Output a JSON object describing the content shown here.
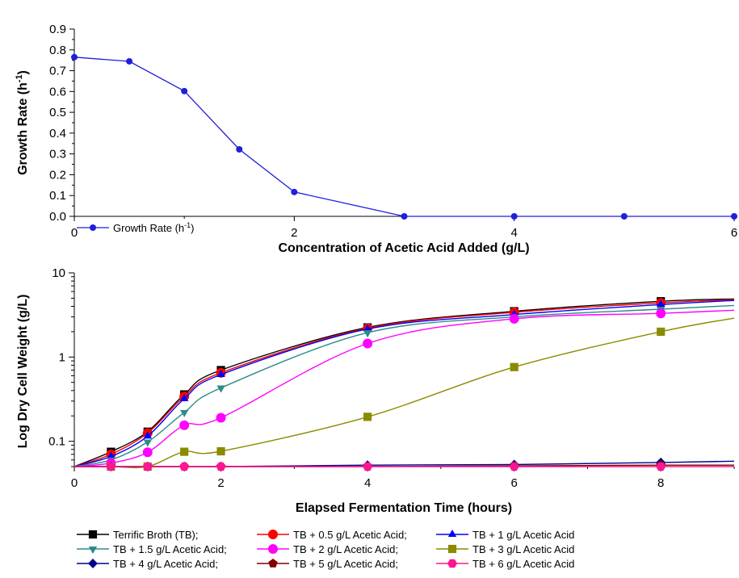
{
  "colors": {
    "growth": "#1f1fdc",
    "tb": "#000000",
    "tb_0_5": "#ff0000",
    "tb_1": "#0000ff",
    "tb_1_5": "#2e8b8b",
    "tb_2": "#ff00ff",
    "tb_3": "#8b8b00",
    "tb_4": "#00008b",
    "tb_5": "#800000",
    "tb_6": "#ff1493"
  },
  "chart_data": [
    {
      "type": "line",
      "xlabel": "Concentration of Acetic Acid Added (g/L)",
      "ylabel": "Growth Rate (h",
      "ylabel_sup": "-1",
      "ylabel_end": ")",
      "xlim": [
        0,
        6
      ],
      "ylim": [
        0,
        0.9
      ],
      "x_ticks": [
        "0",
        "2",
        "4",
        "6"
      ],
      "y_ticks": [
        "0.0",
        "0.1",
        "0.2",
        "0.3",
        "0.4",
        "0.5",
        "0.6",
        "0.7",
        "0.8",
        "0.9"
      ],
      "legend_position": "bottom-left",
      "series": [
        {
          "name": "Growth Rate (h",
          "name_sup": "-1",
          "name_end": ")",
          "marker": "circle",
          "x": [
            0,
            0.5,
            1,
            1.5,
            2,
            3,
            4,
            5,
            6
          ],
          "y": [
            0.765,
            0.745,
            0.602,
            0.322,
            0.117,
            0.0,
            0.0,
            0.0,
            0.0
          ]
        }
      ]
    },
    {
      "type": "line",
      "yscale": "log",
      "xlabel": "Elapsed Fermentation Time (hours)",
      "ylabel": "Log Dry Cell Weight (g/L)",
      "xlim": [
        0,
        9
      ],
      "ylim": [
        0.05,
        10
      ],
      "x_ticks": [
        "0",
        "2",
        "4",
        "6",
        "8"
      ],
      "y_ticks": [
        "0.1",
        "1",
        "10"
      ],
      "legend_position": "bottom",
      "series": [
        {
          "name": "Terrific Broth (TB);",
          "marker": "square",
          "color_key": "tb",
          "x": [
            0,
            0.5,
            1,
            1.5,
            2,
            4,
            6,
            8,
            9
          ],
          "y": [
            0.05,
            0.075,
            0.13,
            0.36,
            0.7,
            2.25,
            3.5,
            4.6,
            4.9
          ]
        },
        {
          "name": "TB + 0.5 g/L Acetic Acid;",
          "marker": "circle",
          "color_key": "tb_0_5",
          "x": [
            0,
            0.5,
            1,
            1.5,
            2,
            4,
            6,
            8,
            9
          ],
          "y": [
            0.05,
            0.07,
            0.125,
            0.34,
            0.65,
            2.2,
            3.4,
            4.4,
            4.8
          ]
        },
        {
          "name": "TB + 1 g/L Acetic Acid",
          "marker": "triangle-up",
          "color_key": "tb_1",
          "x": [
            0,
            0.5,
            1,
            1.5,
            2,
            4,
            6,
            8,
            9
          ],
          "y": [
            0.05,
            0.066,
            0.115,
            0.32,
            0.62,
            2.15,
            3.2,
            4.2,
            4.7
          ]
        },
        {
          "name": "TB + 1.5 g/L Acetic Acid;",
          "marker": "triangle-down",
          "color_key": "tb_1_5",
          "x": [
            0,
            0.5,
            1,
            1.5,
            2,
            4,
            6,
            8,
            9
          ],
          "y": [
            0.05,
            0.06,
            0.098,
            0.22,
            0.43,
            1.95,
            3.0,
            3.7,
            4.1
          ]
        },
        {
          "name": "TB + 2 g/L Acetic Acid;",
          "marker": "circle",
          "color_key": "tb_2",
          "x": [
            0,
            0.5,
            1,
            1.5,
            2,
            4,
            6,
            8,
            9
          ],
          "y": [
            0.05,
            0.055,
            0.074,
            0.155,
            0.19,
            1.45,
            2.85,
            3.3,
            3.6
          ]
        },
        {
          "name": "TB + 3 g/L Acetic Acid",
          "marker": "square",
          "color_key": "tb_3",
          "x": [
            0,
            0.5,
            1,
            1.5,
            2,
            4,
            6,
            8,
            9
          ],
          "y": [
            0.05,
            0.05,
            0.05,
            0.075,
            0.076,
            0.195,
            0.76,
            2.0,
            2.9
          ]
        },
        {
          "name": "TB + 4 g/L Acetic Acid;",
          "marker": "diamond",
          "color_key": "tb_4",
          "x": [
            0,
            0.5,
            1,
            1.5,
            2,
            4,
            6,
            8,
            9
          ],
          "y": [
            0.05,
            0.05,
            0.05,
            0.05,
            0.05,
            0.052,
            0.053,
            0.056,
            0.058
          ]
        },
        {
          "name": "TB + 5 g/L Acetic Acid;",
          "marker": "pentagon",
          "color_key": "tb_5",
          "x": [
            0,
            0.5,
            1,
            1.5,
            2,
            4,
            6,
            8,
            9
          ],
          "y": [
            0.05,
            0.05,
            0.05,
            0.05,
            0.05,
            0.05,
            0.051,
            0.052,
            0.052
          ]
        },
        {
          "name": "TB + 6 g/L Acetic Acid",
          "marker": "hexagon",
          "color_key": "tb_6",
          "x": [
            0,
            0.5,
            1,
            1.5,
            2,
            4,
            6,
            8,
            9
          ],
          "y": [
            0.05,
            0.05,
            0.05,
            0.05,
            0.05,
            0.05,
            0.05,
            0.05,
            0.05
          ]
        }
      ]
    }
  ]
}
